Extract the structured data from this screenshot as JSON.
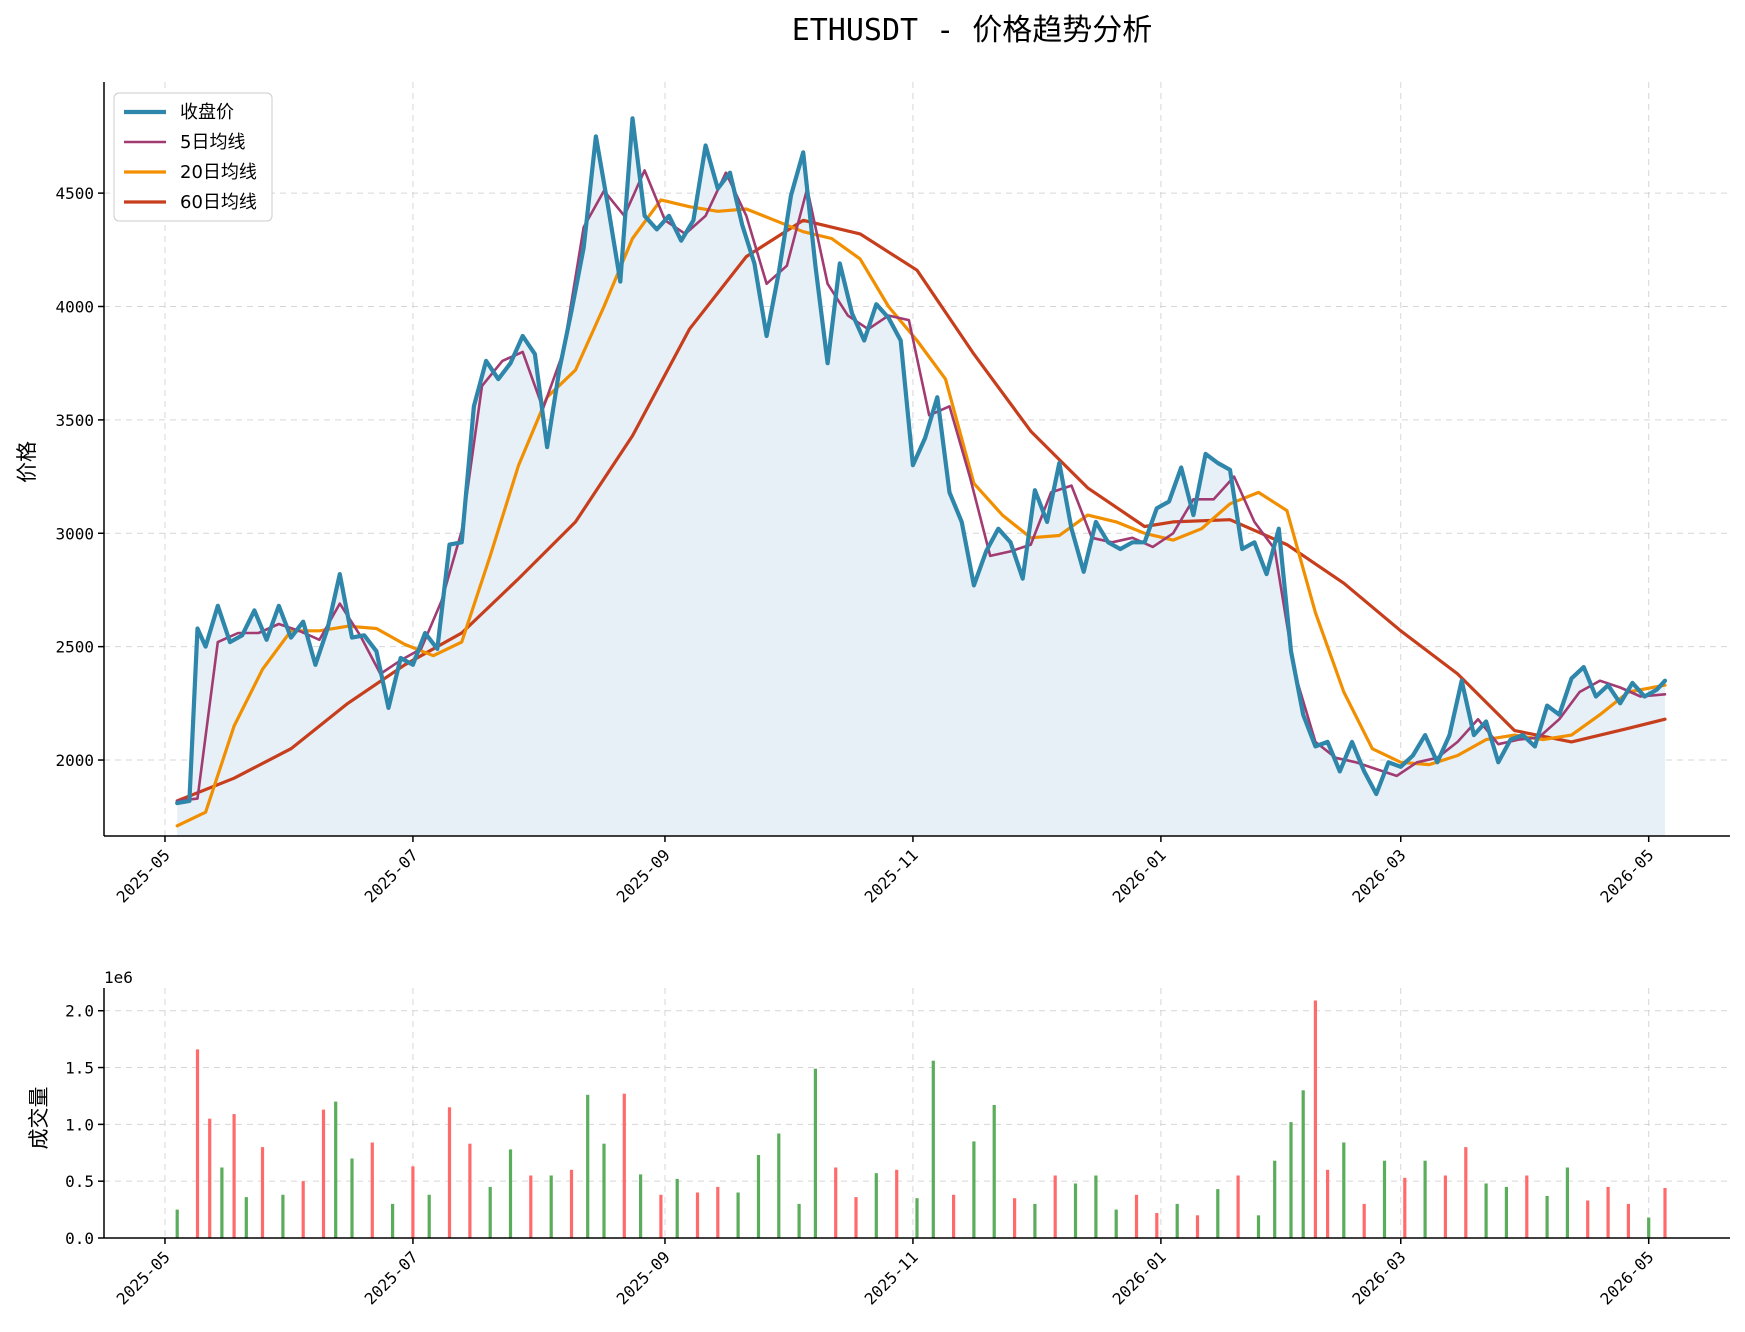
{
  "chart_data": [
    {
      "type": "line",
      "title": "ETHUSDT - 价格趋势分析",
      "xlabel": "",
      "ylabel": "价格",
      "x_tick_labels": [
        "2025-05",
        "2025-07",
        "2025-09",
        "2025-11",
        "2026-01",
        "2026-03",
        "2026-05"
      ],
      "x_ticks": [
        "2025-05-01",
        "2025-07-01",
        "2025-09-01",
        "2025-11-01",
        "2026-01-01",
        "2026-03-01",
        "2026-05-01"
      ],
      "xlim": [
        "2025-04-16",
        "2026-05-21"
      ],
      "y_tick_labels": [
        "2000",
        "2500",
        "3000",
        "3500",
        "4000",
        "4500"
      ],
      "y_ticks": [
        2000,
        2500,
        3000,
        3500,
        4000,
        4500
      ],
      "ylim": [
        1665,
        4990
      ],
      "grid": true,
      "legend": "top-left",
      "fill_under": "收盘价",
      "colors": {
        "close": "#2e86ab",
        "ma5": "#a23b72",
        "ma20": "#f18f01",
        "ma60": "#c73e1d",
        "fill": "#e6f0f6"
      },
      "series": [
        {
          "name": "收盘价",
          "x": [
            "2025-05-04",
            "2025-05-07",
            "2025-05-09",
            "2025-05-11",
            "2025-05-14",
            "2025-05-17",
            "2025-05-20",
            "2025-05-23",
            "2025-05-26",
            "2025-05-29",
            "2025-06-01",
            "2025-06-04",
            "2025-06-07",
            "2025-06-10",
            "2025-06-13",
            "2025-06-16",
            "2025-06-19",
            "2025-06-22",
            "2025-06-25",
            "2025-06-28",
            "2025-07-01",
            "2025-07-04",
            "2025-07-07",
            "2025-07-10",
            "2025-07-13",
            "2025-07-16",
            "2025-07-19",
            "2025-07-22",
            "2025-07-25",
            "2025-07-28",
            "2025-07-31",
            "2025-08-03",
            "2025-08-06",
            "2025-08-09",
            "2025-08-12",
            "2025-08-15",
            "2025-08-18",
            "2025-08-21",
            "2025-08-24",
            "2025-08-27",
            "2025-08-30",
            "2025-09-02",
            "2025-09-05",
            "2025-09-08",
            "2025-09-11",
            "2025-09-14",
            "2025-09-17",
            "2025-09-20",
            "2025-09-23",
            "2025-09-26",
            "2025-09-29",
            "2025-10-02",
            "2025-10-05",
            "2025-10-08",
            "2025-10-11",
            "2025-10-14",
            "2025-10-17",
            "2025-10-20",
            "2025-10-23",
            "2025-10-26",
            "2025-10-29",
            "2025-11-01",
            "2025-11-04",
            "2025-11-07",
            "2025-11-10",
            "2025-11-13",
            "2025-11-16",
            "2025-11-19",
            "2025-11-22",
            "2025-11-25",
            "2025-11-28",
            "2025-12-01",
            "2025-12-04",
            "2025-12-07",
            "2025-12-10",
            "2025-12-13",
            "2025-12-16",
            "2025-12-19",
            "2025-12-22",
            "2025-12-25",
            "2025-12-28",
            "2025-12-31",
            "2026-01-03",
            "2026-01-06",
            "2026-01-09",
            "2026-01-12",
            "2026-01-15",
            "2026-01-18",
            "2026-01-21",
            "2026-01-24",
            "2026-01-27",
            "2026-01-30",
            "2026-02-02",
            "2026-02-05",
            "2026-02-08",
            "2026-02-11",
            "2026-02-14",
            "2026-02-17",
            "2026-02-20",
            "2026-02-23",
            "2026-02-26",
            "2026-03-01",
            "2026-03-04",
            "2026-03-07",
            "2026-03-10",
            "2026-03-13",
            "2026-03-16",
            "2026-03-19",
            "2026-03-22",
            "2026-03-25",
            "2026-03-28",
            "2026-03-31",
            "2026-04-03",
            "2026-04-06",
            "2026-04-09",
            "2026-04-12",
            "2026-04-15",
            "2026-04-18",
            "2026-04-21",
            "2026-04-24",
            "2026-04-27",
            "2026-04-30",
            "2026-05-03",
            "2026-05-05"
          ],
          "values": [
            1810,
            1820,
            2580,
            2500,
            2680,
            2520,
            2550,
            2660,
            2530,
            2680,
            2540,
            2610,
            2420,
            2580,
            2820,
            2540,
            2550,
            2480,
            2230,
            2450,
            2420,
            2560,
            2490,
            2950,
            2960,
            3560,
            3760,
            3680,
            3750,
            3870,
            3790,
            3380,
            3720,
            3980,
            4260,
            4750,
            4440,
            4110,
            4830,
            4400,
            4340,
            4400,
            4290,
            4380,
            4710,
            4520,
            4590,
            4360,
            4190,
            3870,
            4150,
            4490,
            4680,
            4180,
            3750,
            4190,
            3970,
            3850,
            4010,
            3950,
            3850,
            3300,
            3420,
            3600,
            3180,
            3050,
            2770,
            2920,
            3020,
            2960,
            2800,
            3190,
            3050,
            3310,
            3020,
            2830,
            3050,
            2960,
            2930,
            2960,
            2960,
            3110,
            3140,
            3290,
            3080,
            3350,
            3310,
            3280,
            2930,
            2960,
            2820,
            3020,
            2480,
            2200,
            2060,
            2080,
            1950,
            2080,
            1950,
            1850,
            1990,
            1970,
            2020,
            2110,
            1990,
            2110,
            2350,
            2110,
            2170,
            1990,
            2090,
            2110,
            2060,
            2240,
            2200,
            2360,
            2410,
            2280,
            2330,
            2250,
            2340,
            2280,
            2310,
            2350
          ]
        },
        {
          "name": "5日均线",
          "x": [
            "2025-05-04",
            "2025-05-09",
            "2025-05-14",
            "2025-05-19",
            "2025-05-24",
            "2025-05-29",
            "2025-06-03",
            "2025-06-08",
            "2025-06-13",
            "2025-06-18",
            "2025-06-23",
            "2025-06-28",
            "2025-07-03",
            "2025-07-08",
            "2025-07-13",
            "2025-07-18",
            "2025-07-23",
            "2025-07-28",
            "2025-08-02",
            "2025-08-07",
            "2025-08-12",
            "2025-08-17",
            "2025-08-22",
            "2025-08-27",
            "2025-09-01",
            "2025-09-06",
            "2025-09-11",
            "2025-09-16",
            "2025-09-21",
            "2025-09-26",
            "2025-10-01",
            "2025-10-06",
            "2025-10-11",
            "2025-10-16",
            "2025-10-21",
            "2025-10-26",
            "2025-10-31",
            "2025-11-05",
            "2025-11-10",
            "2025-11-15",
            "2025-11-20",
            "2025-11-25",
            "2025-11-30",
            "2025-12-05",
            "2025-12-10",
            "2025-12-15",
            "2025-12-20",
            "2025-12-25",
            "2025-12-30",
            "2026-01-04",
            "2026-01-09",
            "2026-01-14",
            "2026-01-19",
            "2026-01-24",
            "2026-01-29",
            "2026-02-03",
            "2026-02-08",
            "2026-02-13",
            "2026-02-18",
            "2026-02-23",
            "2026-02-28",
            "2026-03-05",
            "2026-03-10",
            "2026-03-15",
            "2026-03-20",
            "2026-03-25",
            "2026-03-30",
            "2026-04-04",
            "2026-04-09",
            "2026-04-14",
            "2026-04-19",
            "2026-04-24",
            "2026-04-29",
            "2026-05-05"
          ],
          "values": [
            1820,
            1830,
            2520,
            2560,
            2560,
            2600,
            2570,
            2530,
            2690,
            2550,
            2380,
            2440,
            2490,
            2700,
            3010,
            3650,
            3760,
            3800,
            3550,
            3800,
            4350,
            4510,
            4400,
            4600,
            4380,
            4320,
            4400,
            4590,
            4400,
            4100,
            4180,
            4520,
            4100,
            3960,
            3900,
            3960,
            3940,
            3520,
            3560,
            3250,
            2900,
            2920,
            2950,
            3180,
            3210,
            2980,
            2960,
            2980,
            2940,
            3000,
            3150,
            3150,
            3250,
            3050,
            2930,
            2380,
            2080,
            2010,
            1990,
            1960,
            1930,
            1990,
            2010,
            2080,
            2180,
            2070,
            2090,
            2100,
            2180,
            2300,
            2350,
            2320,
            2280,
            2290
          ]
        },
        {
          "name": "20日均线",
          "x": [
            "2025-05-04",
            "2025-05-11",
            "2025-05-18",
            "2025-05-25",
            "2025-06-01",
            "2025-06-08",
            "2025-06-15",
            "2025-06-22",
            "2025-06-29",
            "2025-07-06",
            "2025-07-13",
            "2025-07-20",
            "2025-07-27",
            "2025-08-03",
            "2025-08-10",
            "2025-08-17",
            "2025-08-24",
            "2025-08-31",
            "2025-09-07",
            "2025-09-14",
            "2025-09-21",
            "2025-09-28",
            "2025-10-05",
            "2025-10-12",
            "2025-10-19",
            "2025-10-26",
            "2025-11-02",
            "2025-11-09",
            "2025-11-16",
            "2025-11-23",
            "2025-11-30",
            "2025-12-07",
            "2025-12-14",
            "2025-12-21",
            "2025-12-28",
            "2026-01-04",
            "2026-01-11",
            "2026-01-18",
            "2026-01-25",
            "2026-02-01",
            "2026-02-08",
            "2026-02-15",
            "2026-02-22",
            "2026-03-01",
            "2026-03-08",
            "2026-03-15",
            "2026-03-22",
            "2026-03-29",
            "2026-04-05",
            "2026-04-12",
            "2026-04-19",
            "2026-04-26",
            "2026-05-05"
          ],
          "values": [
            1710,
            1770,
            2150,
            2400,
            2570,
            2570,
            2590,
            2580,
            2510,
            2460,
            2520,
            2900,
            3300,
            3600,
            3720,
            4000,
            4300,
            4470,
            4440,
            4420,
            4430,
            4380,
            4330,
            4300,
            4210,
            4000,
            3850,
            3680,
            3220,
            3080,
            2980,
            2990,
            3080,
            3050,
            3000,
            2970,
            3020,
            3130,
            3180,
            3100,
            2650,
            2300,
            2050,
            1990,
            1980,
            2020,
            2090,
            2110,
            2090,
            2110,
            2200,
            2300,
            2330
          ]
        },
        {
          "name": "60日均线",
          "x": [
            "2025-05-04",
            "2025-05-18",
            "2025-06-01",
            "2025-06-15",
            "2025-06-29",
            "2025-07-13",
            "2025-07-27",
            "2025-08-10",
            "2025-08-24",
            "2025-09-07",
            "2025-09-21",
            "2025-10-05",
            "2025-10-19",
            "2025-11-02",
            "2025-11-16",
            "2025-11-30",
            "2025-12-14",
            "2025-12-28",
            "2026-01-04",
            "2026-01-18",
            "2026-02-01",
            "2026-02-15",
            "2026-03-01",
            "2026-03-15",
            "2026-03-29",
            "2026-04-12",
            "2026-04-26",
            "2026-05-05"
          ],
          "values": [
            1820,
            1920,
            2050,
            2250,
            2420,
            2560,
            2800,
            3050,
            3430,
            3900,
            4220,
            4380,
            4320,
            4160,
            3790,
            3450,
            3200,
            3030,
            3050,
            3060,
            2950,
            2780,
            2570,
            2380,
            2130,
            2080,
            2140,
            2180
          ]
        }
      ]
    },
    {
      "type": "bar",
      "title": "",
      "xlabel": "",
      "ylabel": "成交量",
      "y_scale_label": "1e6",
      "x_tick_labels": [
        "2025-05",
        "2025-07",
        "2025-09",
        "2025-11",
        "2026-01",
        "2026-03",
        "2026-05"
      ],
      "x_ticks": [
        "2025-05-01",
        "2025-07-01",
        "2025-09-01",
        "2025-11-01",
        "2026-01-01",
        "2026-03-01",
        "2026-05-01"
      ],
      "xlim": [
        "2025-04-16",
        "2026-05-21"
      ],
      "y_tick_labels": [
        "0.0",
        "0.5",
        "1.0",
        "1.5",
        "2.0"
      ],
      "y_ticks": [
        0.0,
        0.5,
        1.0,
        1.5,
        2.0
      ],
      "ylim": [
        0,
        2.2
      ],
      "grid": true,
      "colors": {
        "up": "#5aad5a",
        "down": "#ff6b6b"
      },
      "series": [
        {
          "name": "",
          "x": [
            "2025-05-04",
            "2025-05-09",
            "2025-05-12",
            "2025-05-15",
            "2025-05-18",
            "2025-05-21",
            "2025-05-25",
            "2025-05-30",
            "2025-06-04",
            "2025-06-09",
            "2025-06-12",
            "2025-06-16",
            "2025-06-21",
            "2025-06-26",
            "2025-07-01",
            "2025-07-05",
            "2025-07-10",
            "2025-07-15",
            "2025-07-20",
            "2025-07-25",
            "2025-07-30",
            "2025-08-04",
            "2025-08-09",
            "2025-08-13",
            "2025-08-17",
            "2025-08-22",
            "2025-08-26",
            "2025-08-31",
            "2025-09-04",
            "2025-09-09",
            "2025-09-14",
            "2025-09-19",
            "2025-09-24",
            "2025-09-29",
            "2025-10-04",
            "2025-10-08",
            "2025-10-13",
            "2025-10-18",
            "2025-10-23",
            "2025-10-28",
            "2025-11-02",
            "2025-11-06",
            "2025-11-11",
            "2025-11-16",
            "2025-11-21",
            "2025-11-26",
            "2025-12-01",
            "2025-12-06",
            "2025-12-11",
            "2025-12-16",
            "2025-12-21",
            "2025-12-26",
            "2025-12-31",
            "2026-01-05",
            "2026-01-10",
            "2026-01-15",
            "2026-01-20",
            "2026-01-25",
            "2026-01-29",
            "2026-02-02",
            "2026-02-05",
            "2026-02-08",
            "2026-02-11",
            "2026-02-15",
            "2026-02-20",
            "2026-02-25",
            "2026-03-02",
            "2026-03-07",
            "2026-03-12",
            "2026-03-17",
            "2026-03-22",
            "2026-03-27",
            "2026-04-01",
            "2026-04-06",
            "2026-04-11",
            "2026-04-16",
            "2026-04-21",
            "2026-04-26",
            "2026-05-01",
            "2026-05-05"
          ],
          "values": [
            0.25,
            1.66,
            1.05,
            0.62,
            1.09,
            0.36,
            0.8,
            0.38,
            0.5,
            1.13,
            1.2,
            0.7,
            0.84,
            0.3,
            0.63,
            0.38,
            1.15,
            0.83,
            0.45,
            0.78,
            0.55,
            0.55,
            0.6,
            1.26,
            0.83,
            1.27,
            0.56,
            0.38,
            0.52,
            0.4,
            0.45,
            0.4,
            0.73,
            0.92,
            0.3,
            1.49,
            0.62,
            0.36,
            0.57,
            0.6,
            0.35,
            1.56,
            0.38,
            0.85,
            1.17,
            0.35,
            0.3,
            0.55,
            0.48,
            0.55,
            0.25,
            0.38,
            0.22,
            0.3,
            0.2,
            0.43,
            0.55,
            0.2,
            0.68,
            1.02,
            1.3,
            2.09,
            0.6,
            0.84,
            0.3,
            0.68,
            0.53,
            0.68,
            0.55,
            0.8,
            0.48,
            0.45,
            0.55,
            0.37,
            0.62,
            0.33,
            0.45,
            0.3,
            0.18,
            0.44
          ],
          "direction": [
            "up",
            "down",
            "down",
            "up",
            "down",
            "up",
            "down",
            "up",
            "down",
            "down",
            "up",
            "up",
            "down",
            "up",
            "down",
            "up",
            "down",
            "down",
            "up",
            "up",
            "down",
            "up",
            "down",
            "up",
            "up",
            "down",
            "up",
            "down",
            "up",
            "down",
            "down",
            "up",
            "up",
            "up",
            "up",
            "up",
            "down",
            "down",
            "up",
            "down",
            "up",
            "up",
            "down",
            "up",
            "up",
            "down",
            "up",
            "down",
            "up",
            "up",
            "up",
            "down",
            "down",
            "up",
            "down",
            "up",
            "down",
            "up",
            "up",
            "up",
            "up",
            "down",
            "down",
            "up",
            "down",
            "up",
            "down",
            "up",
            "down",
            "down",
            "up",
            "up",
            "down",
            "up",
            "up",
            "down",
            "down",
            "down",
            "up",
            "down"
          ]
        }
      ]
    }
  ]
}
